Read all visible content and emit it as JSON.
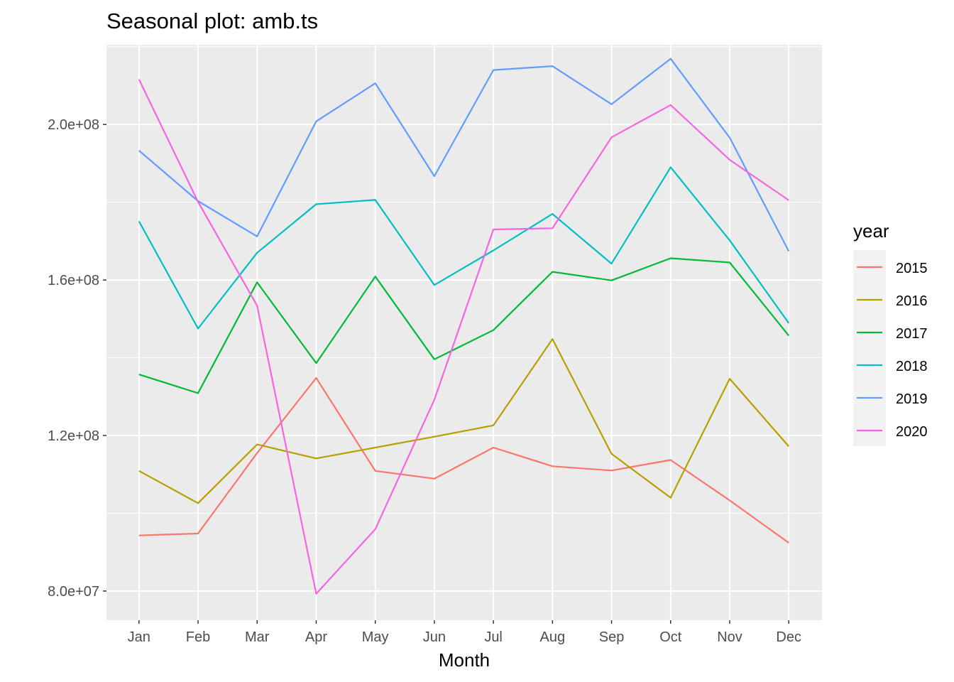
{
  "chart_data": {
    "type": "line",
    "title": "Seasonal plot: amb.ts",
    "xlabel": "Month",
    "ylabel": "",
    "categories": [
      "Jan",
      "Feb",
      "Mar",
      "Apr",
      "May",
      "Jun",
      "Jul",
      "Aug",
      "Sep",
      "Oct",
      "Nov",
      "Dec"
    ],
    "ylim": [
      72500000,
      220500000
    ],
    "y_ticks": [
      80000000,
      120000000,
      160000000,
      200000000
    ],
    "y_tick_labels": [
      "8.0e+07",
      "1.2e+08",
      "1.6e+08",
      "2.0e+08"
    ],
    "grid": true,
    "legend": {
      "title": "year",
      "position": "right"
    },
    "series": [
      {
        "name": "2015",
        "color": "#F8766D",
        "values": [
          94300000,
          94800000,
          115500000,
          134800000,
          110900000,
          108900000,
          116900000,
          112100000,
          111000000,
          113700000,
          103300000,
          92400000
        ]
      },
      {
        "name": "2016",
        "color": "#B79F00",
        "values": [
          110900000,
          102600000,
          117700000,
          114100000,
          116900000,
          119700000,
          122600000,
          144800000,
          115300000,
          104000000,
          134600000,
          117200000
        ]
      },
      {
        "name": "2017",
        "color": "#00BA38",
        "values": [
          135700000,
          130900000,
          159400000,
          138600000,
          160900000,
          139600000,
          147100000,
          162100000,
          159900000,
          165600000,
          164500000,
          145700000
        ]
      },
      {
        "name": "2018",
        "color": "#00BFC4",
        "values": [
          175100000,
          147500000,
          167000000,
          179500000,
          180600000,
          158700000,
          167600000,
          177000000,
          164200000,
          189000000,
          170200000,
          148900000
        ]
      },
      {
        "name": "2019",
        "color": "#619CFF",
        "values": [
          193300000,
          180300000,
          171200000,
          200800000,
          210600000,
          186700000,
          214000000,
          215000000,
          205200000,
          216900000,
          196600000,
          167400000
        ]
      },
      {
        "name": "2020",
        "color": "#F564E3",
        "values": [
          211600000,
          180100000,
          153400000,
          79300000,
          95900000,
          129200000,
          173000000,
          173300000,
          196700000,
          205000000,
          190900000,
          180500000
        ]
      }
    ]
  }
}
